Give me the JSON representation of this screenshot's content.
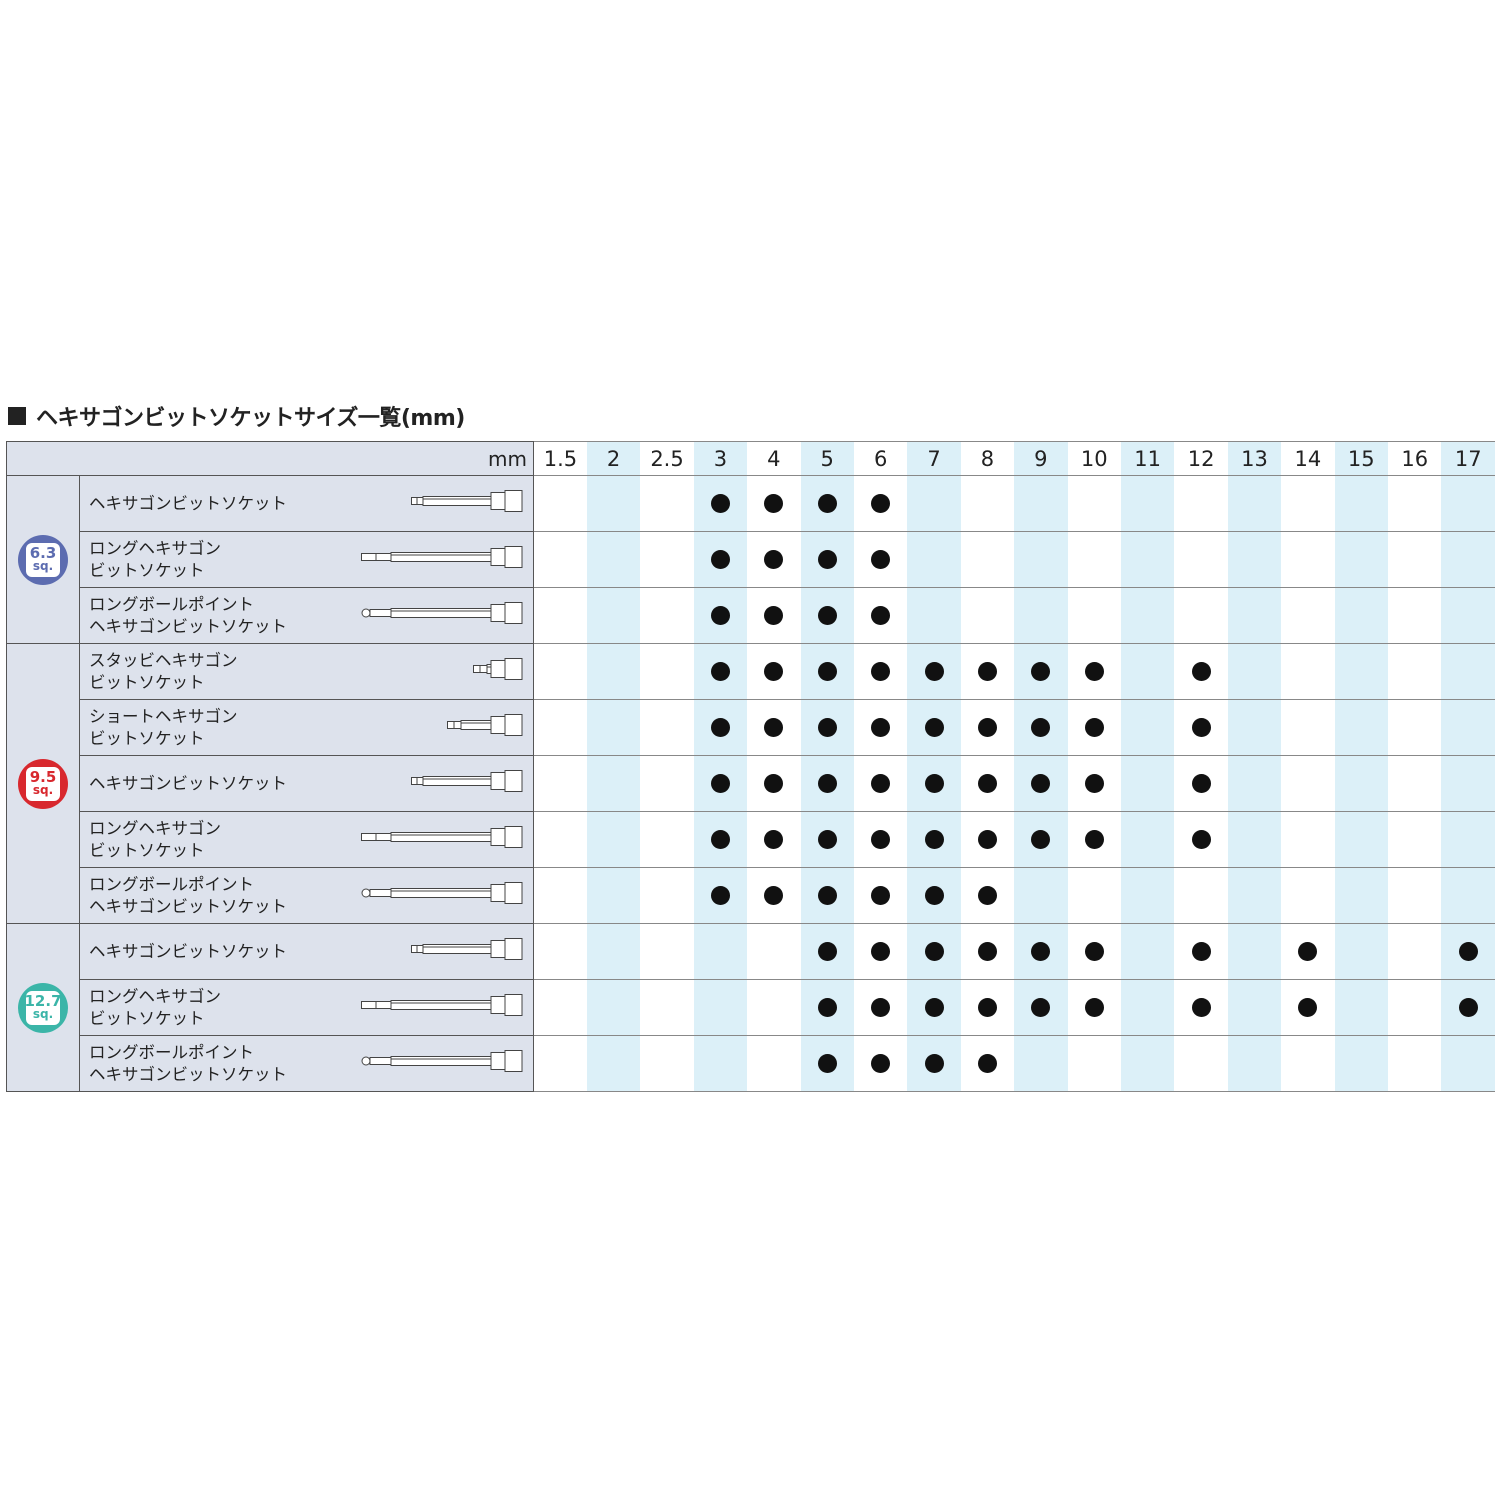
{
  "title": "ヘキサゴンビットソケットサイズ一覧(mm)",
  "unit": "mm",
  "sizes": [
    "1.5",
    "2",
    "2.5",
    "3",
    "4",
    "5",
    "6",
    "7",
    "8",
    "9",
    "10",
    "11",
    "12",
    "13",
    "14",
    "15",
    "16",
    "17"
  ],
  "shaded_columns": [
    "2",
    "3",
    "5",
    "7",
    "9",
    "11",
    "13",
    "15",
    "17"
  ],
  "colors": {
    "header_bg": "#dde2ec",
    "shade": "#dcf0f8",
    "sq63": "#5c6cb0",
    "sq95": "#d8282e",
    "sq127": "#3bb5a8"
  },
  "groups": [
    {
      "value": "6.3",
      "unit": "sq.",
      "color": "#5c6cb0",
      "rows": [
        {
          "lines": [
            "ヘキサゴンビットソケット"
          ],
          "icon": "standard-socket-icon",
          "available": [
            "3",
            "4",
            "5",
            "6"
          ]
        },
        {
          "lines": [
            "ロングヘキサゴン",
            "ビットソケット"
          ],
          "icon": "long-socket-icon",
          "available": [
            "3",
            "4",
            "5",
            "6"
          ]
        },
        {
          "lines": [
            "ロングボールポイント",
            "ヘキサゴンビットソケット"
          ],
          "icon": "ball-point-socket-icon",
          "available": [
            "3",
            "4",
            "5",
            "6"
          ]
        }
      ]
    },
    {
      "value": "9.5",
      "unit": "sq.",
      "color": "#d8282e",
      "rows": [
        {
          "lines": [
            "スタッビヘキサゴン",
            "ビットソケット"
          ],
          "icon": "stubby-socket-icon",
          "available": [
            "3",
            "4",
            "5",
            "6",
            "7",
            "8",
            "9",
            "10",
            "12"
          ]
        },
        {
          "lines": [
            "ショートヘキサゴン",
            "ビットソケット"
          ],
          "icon": "short-socket-icon",
          "available": [
            "3",
            "4",
            "5",
            "6",
            "7",
            "8",
            "9",
            "10",
            "12"
          ]
        },
        {
          "lines": [
            "ヘキサゴンビットソケット"
          ],
          "icon": "standard-socket-icon",
          "available": [
            "3",
            "4",
            "5",
            "6",
            "7",
            "8",
            "9",
            "10",
            "12"
          ]
        },
        {
          "lines": [
            "ロングヘキサゴン",
            "ビットソケット"
          ],
          "icon": "long-socket-icon",
          "available": [
            "3",
            "4",
            "5",
            "6",
            "7",
            "8",
            "9",
            "10",
            "12"
          ]
        },
        {
          "lines": [
            "ロングボールポイント",
            "ヘキサゴンビットソケット"
          ],
          "icon": "ball-point-socket-icon",
          "available": [
            "3",
            "4",
            "5",
            "6",
            "7",
            "8"
          ]
        }
      ]
    },
    {
      "value": "12.7",
      "unit": "sq.",
      "color": "#3bb5a8",
      "rows": [
        {
          "lines": [
            "ヘキサゴンビットソケット"
          ],
          "icon": "standard-socket-icon",
          "available": [
            "5",
            "6",
            "7",
            "8",
            "9",
            "10",
            "12",
            "14",
            "17"
          ]
        },
        {
          "lines": [
            "ロングヘキサゴン",
            "ビットソケット"
          ],
          "icon": "long-socket-icon",
          "available": [
            "5",
            "6",
            "7",
            "8",
            "9",
            "10",
            "12",
            "14",
            "17"
          ]
        },
        {
          "lines": [
            "ロングボールポイント",
            "ヘキサゴンビットソケット"
          ],
          "icon": "ball-point-socket-icon",
          "available": [
            "5",
            "6",
            "7",
            "8"
          ]
        }
      ]
    }
  ]
}
